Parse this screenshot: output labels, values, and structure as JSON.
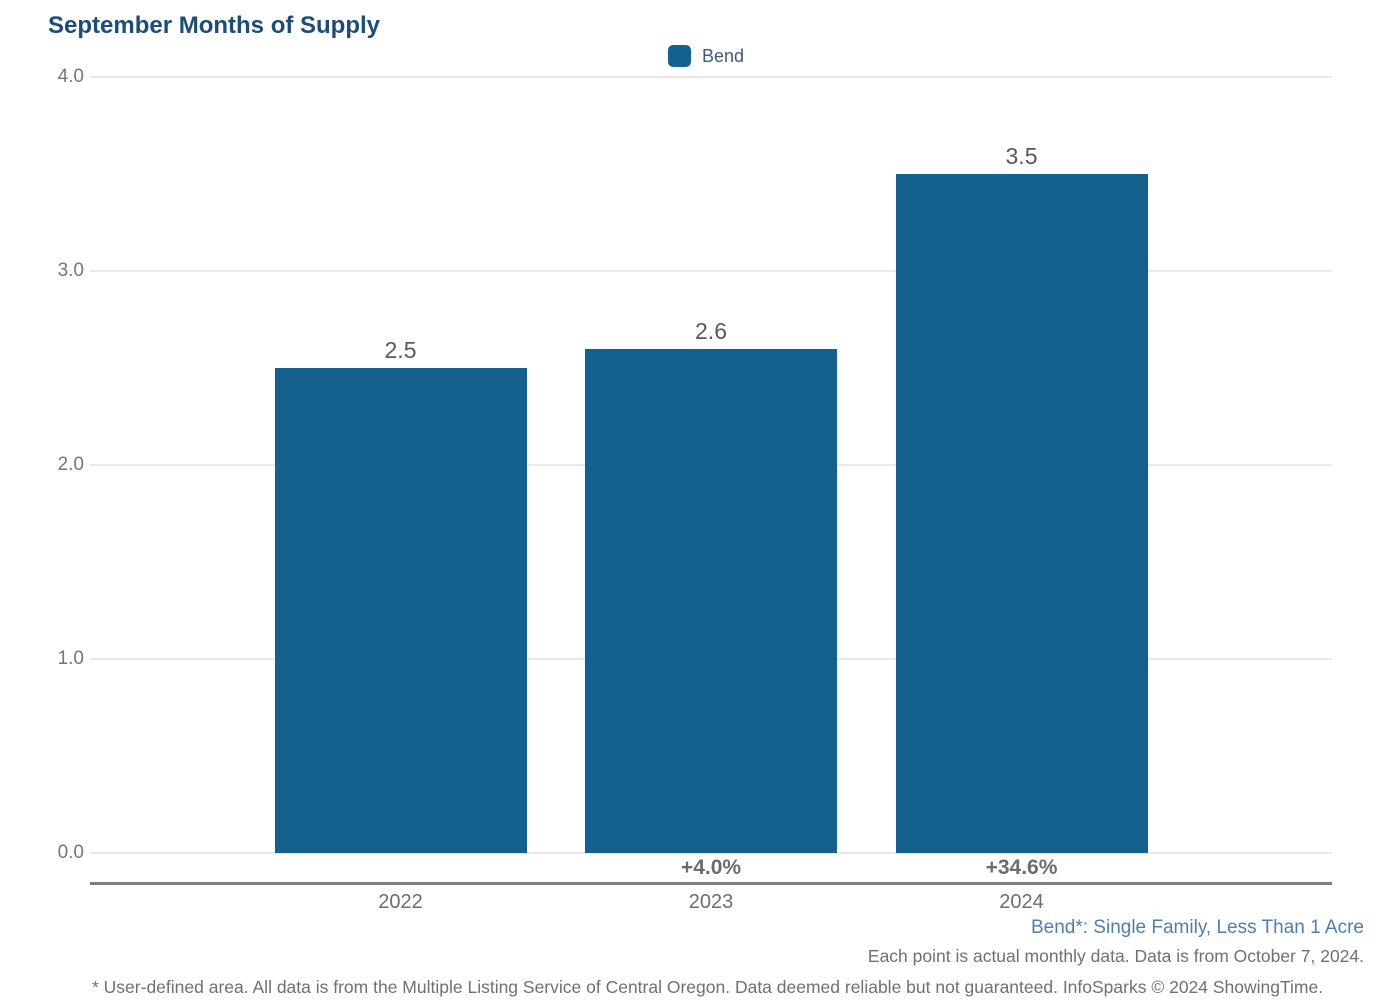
{
  "title": "September Months of Supply",
  "legend": {
    "label": "Bend"
  },
  "chart_data": {
    "type": "bar",
    "title": "September Months of Supply",
    "categories": [
      "2022",
      "2023",
      "2024"
    ],
    "values": [
      2.5,
      2.6,
      3.5
    ],
    "value_labels": [
      "2.5",
      "2.6",
      "3.5"
    ],
    "pct_change_labels": [
      "",
      "+4.0%",
      "+34.6%"
    ],
    "series_name": "Bend",
    "xlabel": "",
    "ylabel": "",
    "ylim": [
      0,
      4
    ],
    "ytick_labels": [
      "0.0",
      "1.0",
      "2.0",
      "3.0",
      "4.0"
    ],
    "ytick_values": [
      0,
      1,
      2,
      3,
      4
    ],
    "grid": true,
    "legend_position": "top",
    "bar_color": "#14618f"
  },
  "footnotes": {
    "series_note": "Bend*: Single Family, Less Than 1 Acre",
    "data_note": "Each point is actual monthly data. Data is from October 7, 2024.",
    "disclaimer": "* User-defined area. All data is from the Multiple Listing Service of Central Oregon. Data deemed reliable but not guaranteed. InfoSparks © 2024 ShowingTime."
  },
  "colors": {
    "bar": "#14618f",
    "title": "#1d4c74",
    "series_note": "#4d7fb0",
    "gridline": "#e9e9e9",
    "axis_line": "#7d7d7d",
    "tick_text": "#767676",
    "value_text": "#58595b",
    "note_text": "#6f7072"
  }
}
